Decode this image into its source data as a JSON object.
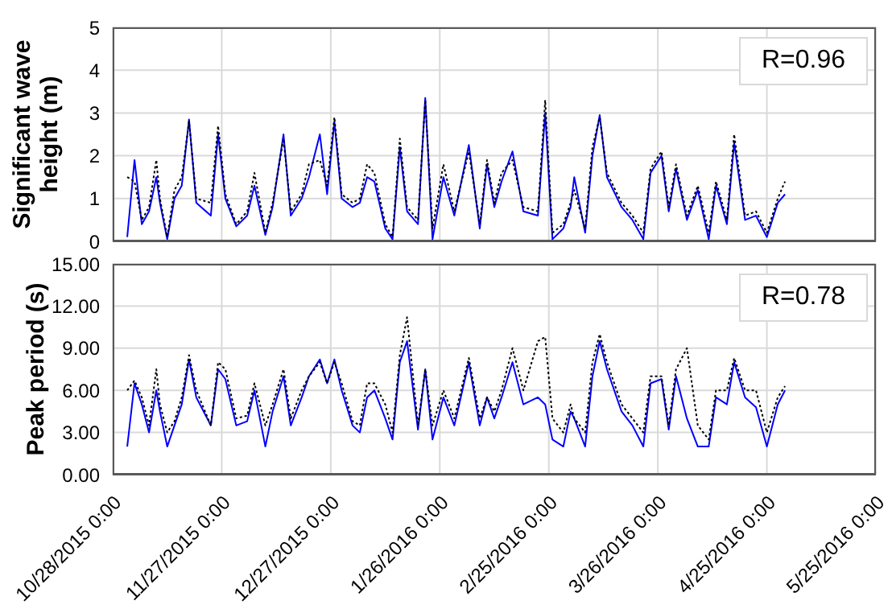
{
  "chart_data": [
    {
      "type": "line",
      "ylabel": "Significant wave height (m)",
      "tick_labels": "y",
      "grid": true,
      "annotations": [
        "R=0.96"
      ],
      "x": [
        "2015-11-01",
        "2015-11-03",
        "2015-11-05",
        "2015-11-07",
        "2015-11-09",
        "2015-11-10",
        "2015-11-12",
        "2015-11-14",
        "2015-11-16",
        "2015-11-18",
        "2015-11-20",
        "2015-11-24",
        "2015-11-26",
        "2015-11-28",
        "2015-12-01",
        "2015-12-04",
        "2015-12-06",
        "2015-12-09",
        "2015-12-11",
        "2015-12-14",
        "2015-12-16",
        "2015-12-19",
        "2015-12-21",
        "2015-12-24",
        "2015-12-26",
        "2015-12-28",
        "2015-12-30",
        "2016-01-02",
        "2016-01-04",
        "2016-01-06",
        "2016-01-08",
        "2016-01-11",
        "2016-01-13",
        "2016-01-15",
        "2016-01-17",
        "2016-01-20",
        "2016-01-22",
        "2016-01-24",
        "2016-01-27",
        "2016-01-30",
        "2016-02-03",
        "2016-02-06",
        "2016-02-08",
        "2016-02-10",
        "2016-02-12",
        "2016-02-15",
        "2016-02-18",
        "2016-02-22",
        "2016-02-24",
        "2016-02-26",
        "2016-02-29",
        "2016-03-02",
        "2016-03-03",
        "2016-03-06",
        "2016-03-08",
        "2016-03-10",
        "2016-03-12",
        "2016-03-16",
        "2016-03-19",
        "2016-03-22",
        "2016-03-24",
        "2016-03-27",
        "2016-03-29",
        "2016-03-31",
        "2016-04-03",
        "2016-04-06",
        "2016-04-09",
        "2016-04-11",
        "2016-04-14",
        "2016-04-16",
        "2016-04-19",
        "2016-04-22",
        "2016-04-25",
        "2016-04-28",
        "2016-04-30"
      ],
      "xlim": [
        "2015-10-28",
        "2016-05-25"
      ],
      "xticks": [
        {
          "value": "2015-10-28",
          "label": null
        },
        {
          "value": "2015-11-27",
          "label": null
        },
        {
          "value": "2015-12-27",
          "label": null
        },
        {
          "value": "2016-01-26",
          "label": null
        },
        {
          "value": "2016-02-25",
          "label": null
        },
        {
          "value": "2016-03-26",
          "label": null
        },
        {
          "value": "2016-04-25",
          "label": null
        },
        {
          "value": "2016-05-25",
          "label": null
        }
      ],
      "ylim": [
        0,
        5
      ],
      "yticks": [
        0,
        1,
        2,
        3,
        4,
        5
      ],
      "series": [
        {
          "color": "#0000ff",
          "line_style": "solid",
          "values": [
            0.1,
            1.9,
            0.4,
            0.7,
            1.5,
            0.9,
            0.05,
            1.0,
            1.3,
            2.85,
            0.9,
            0.6,
            2.5,
            1.0,
            0.35,
            0.6,
            1.3,
            0.15,
            0.8,
            2.5,
            0.6,
            1.0,
            1.5,
            2.5,
            1.1,
            2.8,
            1.0,
            0.8,
            0.9,
            1.5,
            1.4,
            0.3,
            0.05,
            2.2,
            0.7,
            0.4,
            3.35,
            0.05,
            1.5,
            0.6,
            2.25,
            0.3,
            1.8,
            0.8,
            1.4,
            2.1,
            0.7,
            0.6,
            3.0,
            0.05,
            0.3,
            0.8,
            1.5,
            0.2,
            2.0,
            2.95,
            1.5,
            0.8,
            0.5,
            0.05,
            1.6,
            2.0,
            0.7,
            1.7,
            0.5,
            1.2,
            0.05,
            1.3,
            0.4,
            2.3,
            0.5,
            0.6,
            0.1,
            0.9,
            1.1
          ]
        },
        {
          "color": "#000000",
          "line_style": "dotted",
          "values": [
            1.5,
            1.4,
            0.5,
            0.8,
            1.9,
            1.0,
            0.1,
            1.2,
            1.5,
            2.8,
            1.0,
            0.9,
            2.7,
            1.1,
            0.4,
            0.7,
            1.6,
            0.2,
            0.9,
            2.4,
            0.7,
            1.1,
            1.8,
            1.9,
            1.3,
            2.9,
            1.1,
            0.9,
            1.0,
            1.8,
            1.6,
            0.4,
            0.1,
            2.4,
            0.8,
            0.5,
            3.3,
            0.3,
            1.8,
            0.7,
            2.1,
            0.4,
            1.9,
            0.9,
            1.6,
            1.9,
            0.8,
            0.7,
            3.3,
            0.2,
            0.4,
            0.9,
            1.2,
            0.3,
            2.2,
            2.9,
            1.6,
            0.9,
            0.6,
            0.2,
            1.7,
            2.1,
            0.8,
            1.8,
            0.6,
            1.3,
            0.2,
            1.4,
            0.5,
            2.5,
            0.6,
            0.7,
            0.2,
            1.0,
            1.4
          ]
        }
      ]
    },
    {
      "type": "line",
      "ylabel": "Peak period (s)",
      "grid": true,
      "annotations": [
        "R=0.78"
      ],
      "x": [
        "2015-11-01",
        "2015-11-03",
        "2015-11-05",
        "2015-11-07",
        "2015-11-09",
        "2015-11-10",
        "2015-11-12",
        "2015-11-14",
        "2015-11-16",
        "2015-11-18",
        "2015-11-20",
        "2015-11-24",
        "2015-11-26",
        "2015-11-28",
        "2015-12-01",
        "2015-12-04",
        "2015-12-06",
        "2015-12-09",
        "2015-12-11",
        "2015-12-14",
        "2015-12-16",
        "2015-12-19",
        "2015-12-21",
        "2015-12-24",
        "2015-12-26",
        "2015-12-28",
        "2015-12-30",
        "2016-01-02",
        "2016-01-04",
        "2016-01-06",
        "2016-01-08",
        "2016-01-11",
        "2016-01-13",
        "2016-01-15",
        "2016-01-17",
        "2016-01-20",
        "2016-01-22",
        "2016-01-24",
        "2016-01-27",
        "2016-01-30",
        "2016-02-03",
        "2016-02-06",
        "2016-02-08",
        "2016-02-10",
        "2016-02-12",
        "2016-02-15",
        "2016-02-18",
        "2016-02-22",
        "2016-02-24",
        "2016-02-26",
        "2016-02-29",
        "2016-03-02",
        "2016-03-03",
        "2016-03-06",
        "2016-03-08",
        "2016-03-10",
        "2016-03-12",
        "2016-03-16",
        "2016-03-19",
        "2016-03-22",
        "2016-03-24",
        "2016-03-27",
        "2016-03-29",
        "2016-03-31",
        "2016-04-03",
        "2016-04-06",
        "2016-04-09",
        "2016-04-11",
        "2016-04-14",
        "2016-04-16",
        "2016-04-19",
        "2016-04-22",
        "2016-04-25",
        "2016-04-28",
        "2016-04-30"
      ],
      "xlim": [
        "2015-10-28",
        "2016-05-25"
      ],
      "xticks": [
        {
          "value": "2015-10-28",
          "label": "10/28/2015 0:00"
        },
        {
          "value": "2015-11-27",
          "label": "11/27/2015 0:00"
        },
        {
          "value": "2015-12-27",
          "label": "12/27/2015 0:00"
        },
        {
          "value": "2016-01-26",
          "label": "1/26/2016 0:00"
        },
        {
          "value": "2016-02-25",
          "label": "2/25/2016 0:00"
        },
        {
          "value": "2016-03-26",
          "label": "3/26/2016 0:00"
        },
        {
          "value": "2016-04-25",
          "label": "4/25/2016 0:00"
        },
        {
          "value": "2016-05-25",
          "label": "5/25/2016 0:00"
        }
      ],
      "ylim": [
        0,
        15
      ],
      "yticks": [
        {
          "value": 0,
          "label": "0.00"
        },
        {
          "value": 3,
          "label": "3.00"
        },
        {
          "value": 6,
          "label": "6.00"
        },
        {
          "value": 9,
          "label": "9.00"
        },
        {
          "value": 12,
          "label": "12.00"
        },
        {
          "value": 15,
          "label": "15.00"
        }
      ],
      "series": [
        {
          "color": "#0000ff",
          "line_style": "solid",
          "values": [
            2,
            6.5,
            5,
            3,
            6,
            4.5,
            2,
            3.5,
            5,
            8.2,
            5.5,
            3.5,
            7.5,
            6.8,
            3.5,
            3.8,
            6,
            2,
            4.5,
            7,
            3.5,
            5.5,
            7,
            8.2,
            6.5,
            8.2,
            6,
            3.5,
            3,
            5.5,
            6,
            4,
            2.5,
            8,
            9.5,
            3.2,
            7.5,
            2.5,
            5.5,
            3.5,
            8,
            3.5,
            5.5,
            4,
            5.5,
            8,
            5,
            5.5,
            5,
            2.5,
            2,
            4.5,
            4,
            2,
            7,
            9.5,
            7.5,
            4.5,
            3.5,
            2,
            6.5,
            6.8,
            3.2,
            7,
            4,
            2,
            2,
            5.5,
            5,
            8,
            5.5,
            4.8,
            2,
            5,
            6
          ]
        },
        {
          "color": "#000000",
          "line_style": "dotted",
          "values": [
            6,
            6.7,
            5.5,
            3.5,
            7.5,
            5,
            3,
            3.8,
            5.5,
            8.5,
            6,
            3.5,
            8,
            7.5,
            4,
            4.2,
            6.5,
            3.5,
            5,
            7.5,
            4,
            6,
            7,
            8,
            6.5,
            8,
            6.5,
            3.8,
            3.5,
            6.5,
            6.5,
            5,
            3,
            8.5,
            11.2,
            3.5,
            7.5,
            3.5,
            6,
            4,
            8.3,
            4,
            5.5,
            4.5,
            6,
            9,
            6,
            9.5,
            9.8,
            4,
            3,
            5,
            4,
            3,
            8,
            10,
            8,
            5,
            4,
            3,
            7,
            7,
            3.5,
            7.5,
            9,
            3.5,
            2.5,
            6,
            6,
            8.3,
            6,
            6,
            3,
            5.5,
            6.3
          ]
        }
      ]
    }
  ]
}
